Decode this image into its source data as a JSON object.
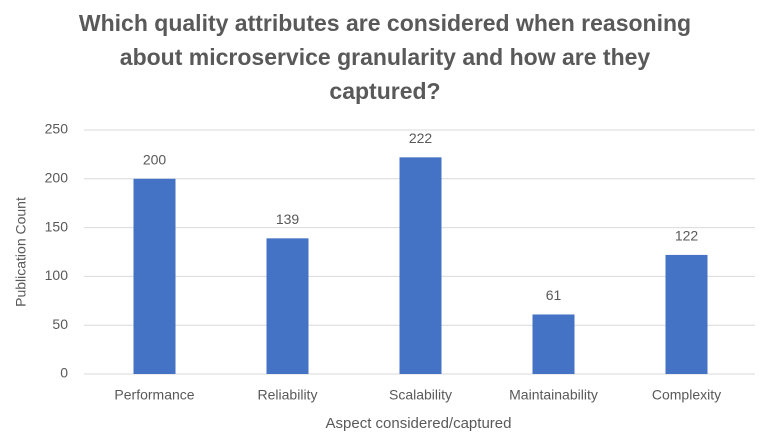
{
  "chart_data": {
    "type": "bar",
    "title": "Which quality attributes are considered when reasoning about microservice granularity and how are they captured?",
    "x_label": "Aspect considered/captured",
    "y_label": "Publication Count",
    "categories": [
      "Performance",
      "Reliability",
      "Scalability",
      "Maintainability",
      "Complexity"
    ],
    "values": [
      200,
      139,
      222,
      61,
      122
    ],
    "color": "#4472c4",
    "ylim": [
      0,
      250
    ],
    "yticks": [
      0,
      50,
      100,
      150,
      200,
      250
    ],
    "grid": true
  }
}
